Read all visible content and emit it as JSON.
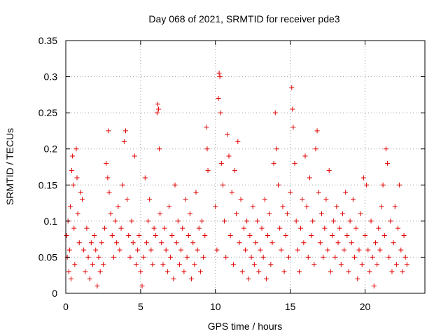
{
  "chart_data": {
    "type": "scatter",
    "title": "Day 068 of 2021, SRMTID for receiver pde3",
    "xlabel": "GPS time / hours",
    "ylabel": "SRMTID / TECUs",
    "xlim": [
      0,
      24
    ],
    "ylim": [
      0,
      0.35
    ],
    "xticks": [
      0,
      5,
      10,
      15,
      20
    ],
    "xtick_labels": [
      "0",
      "5",
      "10",
      "15",
      "20"
    ],
    "yticks": [
      0,
      0.05,
      0.1,
      0.15,
      0.2,
      0.25,
      0.3,
      0.35
    ],
    "ytick_labels": [
      "0",
      "0.05",
      "0.1",
      "0.15",
      "0.2",
      "0.25",
      "0.3",
      "0.35"
    ],
    "grid": true,
    "marker": "+",
    "color": "#e00000",
    "series": [
      {
        "name": "SRMTID",
        "points": [
          [
            0.05,
            0.08
          ],
          [
            0.1,
            0.05
          ],
          [
            0.15,
            0.1
          ],
          [
            0.2,
            0.03
          ],
          [
            0.25,
            0.06
          ],
          [
            0.3,
            0.12
          ],
          [
            0.35,
            0.02
          ],
          [
            0.4,
            0.17
          ],
          [
            0.45,
            0.19
          ],
          [
            0.5,
            0.15
          ],
          [
            0.55,
            0.09
          ],
          [
            0.6,
            0.04
          ],
          [
            0.7,
            0.2
          ],
          [
            0.75,
            0.16
          ],
          [
            0.8,
            0.11
          ],
          [
            0.9,
            0.07
          ],
          [
            1.0,
            0.14
          ],
          [
            1.1,
            0.13
          ],
          [
            1.2,
            0.06
          ],
          [
            1.3,
            0.03
          ],
          [
            1.4,
            0.09
          ],
          [
            1.5,
            0.05
          ],
          [
            1.6,
            0.02
          ],
          [
            1.7,
            0.07
          ],
          [
            1.8,
            0.04
          ],
          [
            1.9,
            0.08
          ],
          [
            2.0,
            0.06
          ],
          [
            2.1,
            0.01
          ],
          [
            2.2,
            0.05
          ],
          [
            2.3,
            0.03
          ],
          [
            2.4,
            0.07
          ],
          [
            2.5,
            0.04
          ],
          [
            2.6,
            0.09
          ],
          [
            2.7,
            0.18
          ],
          [
            2.8,
            0.16
          ],
          [
            2.85,
            0.225
          ],
          [
            2.9,
            0.14
          ],
          [
            3.0,
            0.11
          ],
          [
            3.1,
            0.08
          ],
          [
            3.2,
            0.05
          ],
          [
            3.3,
            0.1
          ],
          [
            3.4,
            0.07
          ],
          [
            3.5,
            0.12
          ],
          [
            3.6,
            0.06
          ],
          [
            3.7,
            0.09
          ],
          [
            3.8,
            0.15
          ],
          [
            3.9,
            0.21
          ],
          [
            4.0,
            0.225
          ],
          [
            4.1,
            0.13
          ],
          [
            4.2,
            0.08
          ],
          [
            4.3,
            0.05
          ],
          [
            4.4,
            0.1
          ],
          [
            4.5,
            0.07
          ],
          [
            4.6,
            0.19
          ],
          [
            4.7,
            0.04
          ],
          [
            4.8,
            0.06
          ],
          [
            4.9,
            0.08
          ],
          [
            5.0,
            0.03
          ],
          [
            5.1,
            0.01
          ],
          [
            5.2,
            0.05
          ],
          [
            5.3,
            0.16
          ],
          [
            5.4,
            0.07
          ],
          [
            5.5,
            0.1
          ],
          [
            5.6,
            0.13
          ],
          [
            5.7,
            0.06
          ],
          [
            5.8,
            0.04
          ],
          [
            5.9,
            0.09
          ],
          [
            6.0,
            0.08
          ],
          [
            6.1,
            0.25
          ],
          [
            6.15,
            0.262
          ],
          [
            6.2,
            0.255
          ],
          [
            6.25,
            0.2
          ],
          [
            6.3,
            0.11
          ],
          [
            6.4,
            0.07
          ],
          [
            6.5,
            0.04
          ],
          [
            6.6,
            0.09
          ],
          [
            6.7,
            0.06
          ],
          [
            6.8,
            0.03
          ],
          [
            6.9,
            0.12
          ],
          [
            7.0,
            0.05
          ],
          [
            7.1,
            0.08
          ],
          [
            7.2,
            0.02
          ],
          [
            7.3,
            0.15
          ],
          [
            7.4,
            0.07
          ],
          [
            7.5,
            0.1
          ],
          [
            7.6,
            0.04
          ],
          [
            7.7,
            0.06
          ],
          [
            7.8,
            0.09
          ],
          [
            7.9,
            0.03
          ],
          [
            8.0,
            0.13
          ],
          [
            8.1,
            0.05
          ],
          [
            8.2,
            0.08
          ],
          [
            8.3,
            0.11
          ],
          [
            8.4,
            0.02
          ],
          [
            8.5,
            0.07
          ],
          [
            8.6,
            0.04
          ],
          [
            8.7,
            0.14
          ],
          [
            8.8,
            0.06
          ],
          [
            8.9,
            0.09
          ],
          [
            9.0,
            0.03
          ],
          [
            9.1,
            0.1
          ],
          [
            9.2,
            0.05
          ],
          [
            9.3,
            0.08
          ],
          [
            9.4,
            0.23
          ],
          [
            9.45,
            0.2
          ],
          [
            9.5,
            0.17
          ],
          [
            10.0,
            0.12
          ],
          [
            10.1,
            0.06
          ],
          [
            10.2,
            0.27
          ],
          [
            10.25,
            0.305
          ],
          [
            10.3,
            0.3
          ],
          [
            10.35,
            0.25
          ],
          [
            10.4,
            0.18
          ],
          [
            10.5,
            0.15
          ],
          [
            10.6,
            0.1
          ],
          [
            10.7,
            0.05
          ],
          [
            10.8,
            0.22
          ],
          [
            10.9,
            0.19
          ],
          [
            11.0,
            0.08
          ],
          [
            11.1,
            0.14
          ],
          [
            11.2,
            0.04
          ],
          [
            11.3,
            0.17
          ],
          [
            11.4,
            0.11
          ],
          [
            11.5,
            0.21
          ],
          [
            11.6,
            0.07
          ],
          [
            11.7,
            0.13
          ],
          [
            11.8,
            0.03
          ],
          [
            11.9,
            0.09
          ],
          [
            12.0,
            0.06
          ],
          [
            12.1,
            0.1
          ],
          [
            12.2,
            0.02
          ],
          [
            12.3,
            0.08
          ],
          [
            12.4,
            0.05
          ],
          [
            12.5,
            0.12
          ],
          [
            12.6,
            0.04
          ],
          [
            12.7,
            0.07
          ],
          [
            12.8,
            0.1
          ],
          [
            12.9,
            0.03
          ],
          [
            13.0,
            0.06
          ],
          [
            13.1,
            0.09
          ],
          [
            13.2,
            0.05
          ],
          [
            13.3,
            0.13
          ],
          [
            13.4,
            0.02
          ],
          [
            13.5,
            0.08
          ],
          [
            13.6,
            0.11
          ],
          [
            13.7,
            0.04
          ],
          [
            13.8,
            0.07
          ],
          [
            13.9,
            0.18
          ],
          [
            14.0,
            0.25
          ],
          [
            14.1,
            0.2
          ],
          [
            14.2,
            0.15
          ],
          [
            14.3,
            0.09
          ],
          [
            14.4,
            0.06
          ],
          [
            14.5,
            0.12
          ],
          [
            14.6,
            0.03
          ],
          [
            14.7,
            0.08
          ],
          [
            14.8,
            0.11
          ],
          [
            14.9,
            0.05
          ],
          [
            15.0,
            0.14
          ],
          [
            15.1,
            0.285
          ],
          [
            15.15,
            0.255
          ],
          [
            15.2,
            0.23
          ],
          [
            15.3,
            0.18
          ],
          [
            15.4,
            0.1
          ],
          [
            15.5,
            0.06
          ],
          [
            15.6,
            0.03
          ],
          [
            15.7,
            0.09
          ],
          [
            15.8,
            0.13
          ],
          [
            15.9,
            0.07
          ],
          [
            16.0,
            0.19
          ],
          [
            16.1,
            0.12
          ],
          [
            16.2,
            0.05
          ],
          [
            16.3,
            0.16
          ],
          [
            16.4,
            0.08
          ],
          [
            16.5,
            0.1
          ],
          [
            16.6,
            0.04
          ],
          [
            16.7,
            0.2
          ],
          [
            16.8,
            0.225
          ],
          [
            16.9,
            0.14
          ],
          [
            17.0,
            0.07
          ],
          [
            17.1,
            0.11
          ],
          [
            17.2,
            0.05
          ],
          [
            17.3,
            0.09
          ],
          [
            17.4,
            0.13
          ],
          [
            17.5,
            0.06
          ],
          [
            17.6,
            0.17
          ],
          [
            17.7,
            0.03
          ],
          [
            17.8,
            0.08
          ],
          [
            17.9,
            0.1
          ],
          [
            18.0,
            0.05
          ],
          [
            18.1,
            0.12
          ],
          [
            18.2,
            0.07
          ],
          [
            18.3,
            0.09
          ],
          [
            18.4,
            0.04
          ],
          [
            18.5,
            0.11
          ],
          [
            18.6,
            0.06
          ],
          [
            18.7,
            0.14
          ],
          [
            18.8,
            0.08
          ],
          [
            18.9,
            0.03
          ],
          [
            19.0,
            0.1
          ],
          [
            19.1,
            0.07
          ],
          [
            19.2,
            0.13
          ],
          [
            19.3,
            0.05
          ],
          [
            19.4,
            0.09
          ],
          [
            19.5,
            0.02
          ],
          [
            19.6,
            0.06
          ],
          [
            19.7,
            0.11
          ],
          [
            19.8,
            0.04
          ],
          [
            19.9,
            0.16
          ],
          [
            20.0,
            0.08
          ],
          [
            20.1,
            0.15
          ],
          [
            20.2,
            0.06
          ],
          [
            20.3,
            0.03
          ],
          [
            20.4,
            0.1
          ],
          [
            20.5,
            0.05
          ],
          [
            20.6,
            0.01
          ],
          [
            20.7,
            0.07
          ],
          [
            20.8,
            0.04
          ],
          [
            20.9,
            0.09
          ],
          [
            21.0,
            0.06
          ],
          [
            21.1,
            0.12
          ],
          [
            21.2,
            0.15
          ],
          [
            21.3,
            0.08
          ],
          [
            21.4,
            0.2
          ],
          [
            21.5,
            0.18
          ],
          [
            21.6,
            0.05
          ],
          [
            21.7,
            0.1
          ],
          [
            21.8,
            0.03
          ],
          [
            21.9,
            0.07
          ],
          [
            22.0,
            0.12
          ],
          [
            22.1,
            0.04
          ],
          [
            22.2,
            0.09
          ],
          [
            22.3,
            0.15
          ],
          [
            22.4,
            0.06
          ],
          [
            22.5,
            0.03
          ],
          [
            22.6,
            0.08
          ],
          [
            22.7,
            0.05
          ],
          [
            22.8,
            0.04
          ]
        ]
      }
    ]
  }
}
